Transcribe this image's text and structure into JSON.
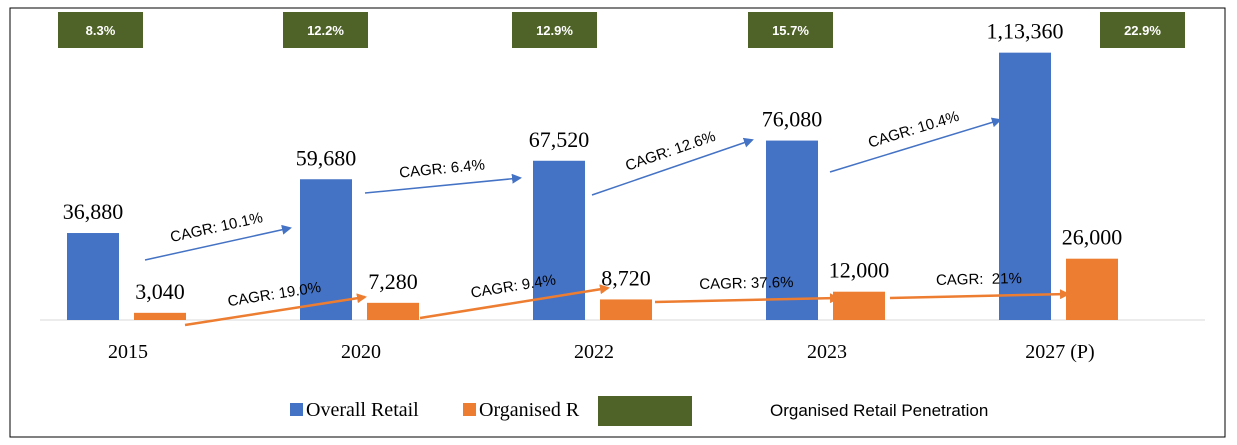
{
  "chart_data": {
    "type": "bar",
    "categories": [
      "2015",
      "2020",
      "2022",
      "2023",
      "2027 (P)"
    ],
    "series": [
      {
        "name": "Overall Retail",
        "color": "#4472c4",
        "values": [
          36880,
          59680,
          67520,
          76080,
          113360
        ],
        "value_labels": [
          "36,880",
          "59,680",
          "67,520",
          "76,080",
          "1,13,360"
        ]
      },
      {
        "name": "Organised R",
        "color": "#ed7d31",
        "values": [
          3040,
          7280,
          8720,
          12000,
          26000
        ],
        "value_labels": [
          "3,040",
          "7,280",
          "8,720",
          "12,000",
          "26,000"
        ]
      }
    ],
    "penetration": {
      "name": "Organised Retail Penetration",
      "color": "#4f6228",
      "values": [
        8.3,
        12.2,
        12.9,
        15.7,
        22.9
      ],
      "value_labels": [
        "8.3%",
        "12.2%",
        "12.9%",
        "15.7%",
        "22.9%"
      ]
    },
    "annotations": [
      "CAGR: 10.1%",
      "CAGR: 6.4%",
      "CAGR: 12.6%",
      "CAGR: 10.4%",
      "CAGR: 19.0%",
      "CAGR: 9.4%",
      "CAGR: 37.6%",
      "CAGR:  21%"
    ],
    "ylim": [
      0,
      120000
    ]
  }
}
